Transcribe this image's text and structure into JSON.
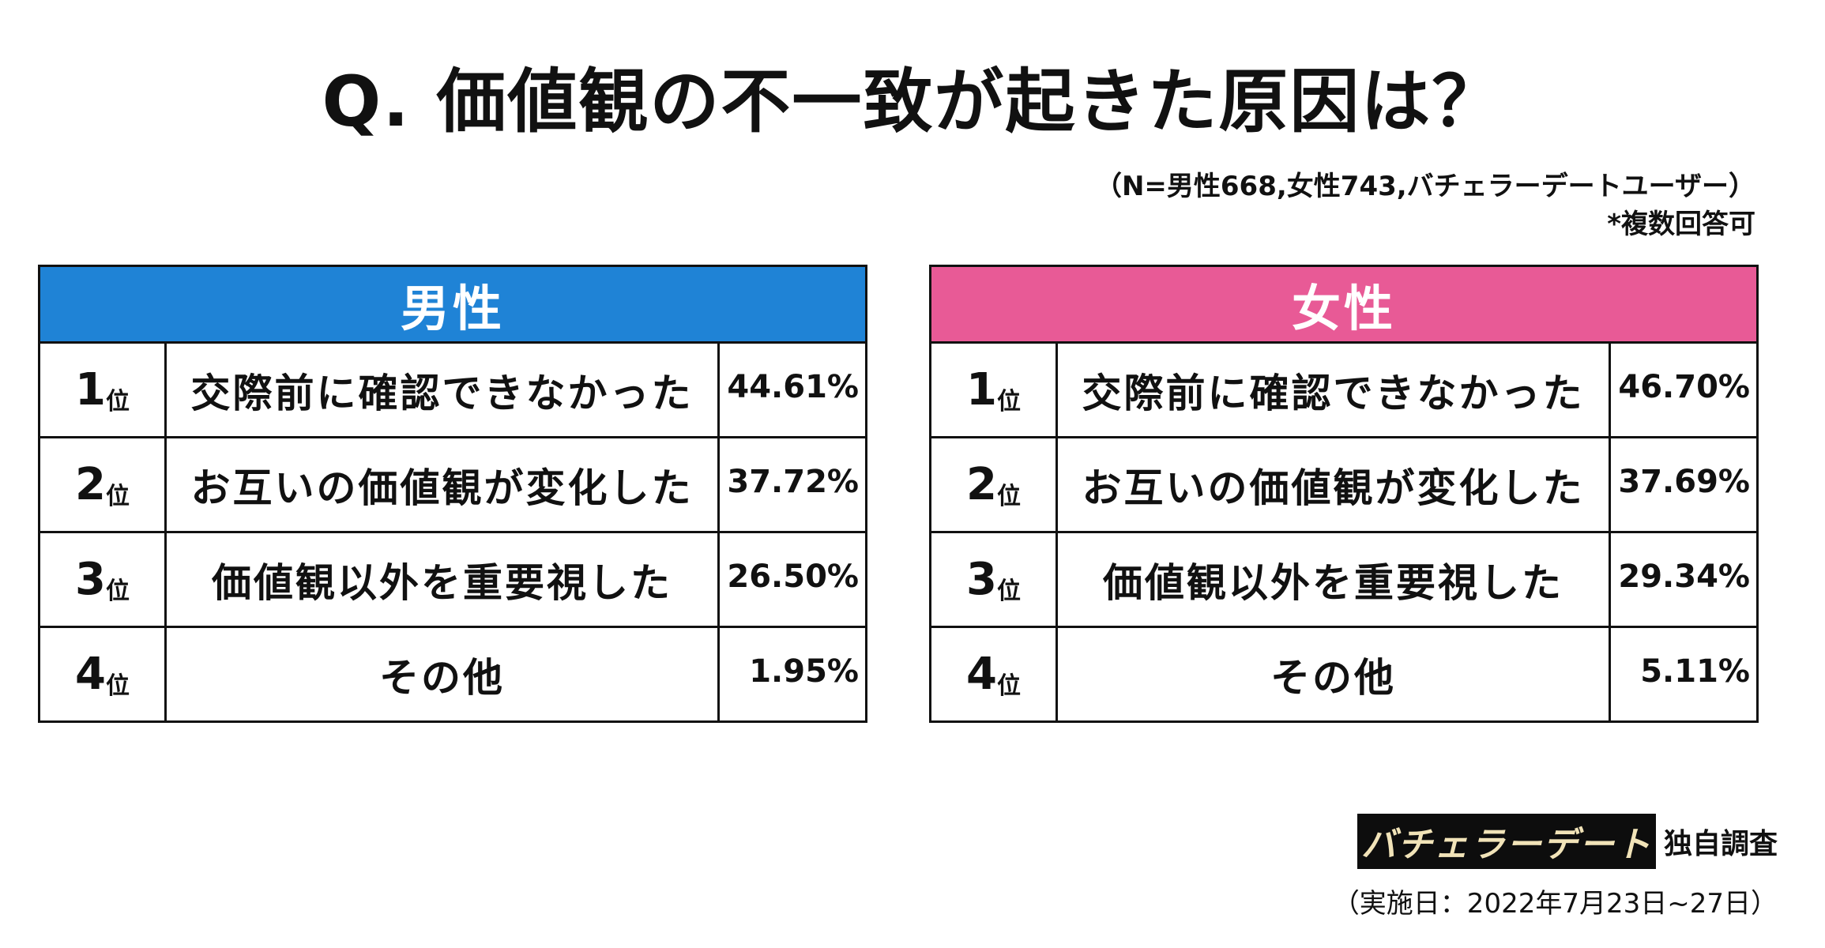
{
  "title": "Q. 価値観の不一致が起きた原因は？",
  "sample_note": "（N=男性668,女性743,バチェラーデートユーザー）",
  "multi_note": "*複数回答可",
  "male": {
    "label": "男性",
    "color": "#1f83d6",
    "rows": [
      {
        "rank": "1",
        "suffix": "位",
        "reason": "交際前に確認できなかった",
        "pct": "44.61%"
      },
      {
        "rank": "2",
        "suffix": "位",
        "reason": "お互いの価値観が変化した",
        "pct": "37.72%"
      },
      {
        "rank": "3",
        "suffix": "位",
        "reason": "価値観以外を重要視した",
        "pct": "26.50%"
      },
      {
        "rank": "4",
        "suffix": "位",
        "reason": "その他",
        "pct": "1.95%"
      }
    ]
  },
  "female": {
    "label": "女性",
    "color": "#e85a96",
    "rows": [
      {
        "rank": "1",
        "suffix": "位",
        "reason": "交際前に確認できなかった",
        "pct": "46.70%"
      },
      {
        "rank": "2",
        "suffix": "位",
        "reason": "お互いの価値観が変化した",
        "pct": "37.69%"
      },
      {
        "rank": "3",
        "suffix": "位",
        "reason": "価値観以外を重要視した",
        "pct": "29.34%"
      },
      {
        "rank": "4",
        "suffix": "位",
        "reason": "その他",
        "pct": "5.11%"
      }
    ]
  },
  "footer": {
    "logo_text": "バチェラーデート",
    "suffix": "独自調査",
    "date": "（実施日：2022年7月23日~27日）"
  }
}
